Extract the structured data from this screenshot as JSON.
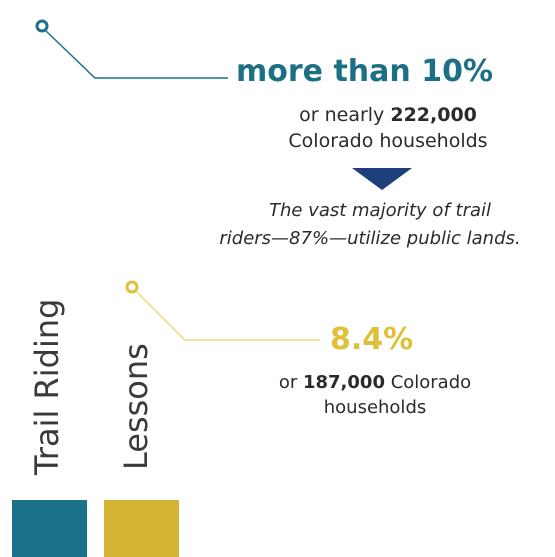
{
  "colors": {
    "teal": "#1b7189",
    "teal_text": "#1d6f86",
    "navy": "#1d3f7a",
    "gold": "#e0bf3a",
    "gold_line": "#f0dc7a"
  },
  "trail_riding": {
    "label": "Trail Riding",
    "headline": "more than 10%",
    "line1_prefix": "or nearly ",
    "line1_number": "222,000",
    "line2": "Colorado households",
    "note_line1": "The vast majority of trail",
    "note_line2": "riders—87%—utilize public lands."
  },
  "lessons": {
    "label": "Lessons",
    "headline": "8.4%",
    "line1_prefix": "or ",
    "line1_number": "187,000",
    "line1_suffix": " Colorado",
    "line2": "households"
  }
}
